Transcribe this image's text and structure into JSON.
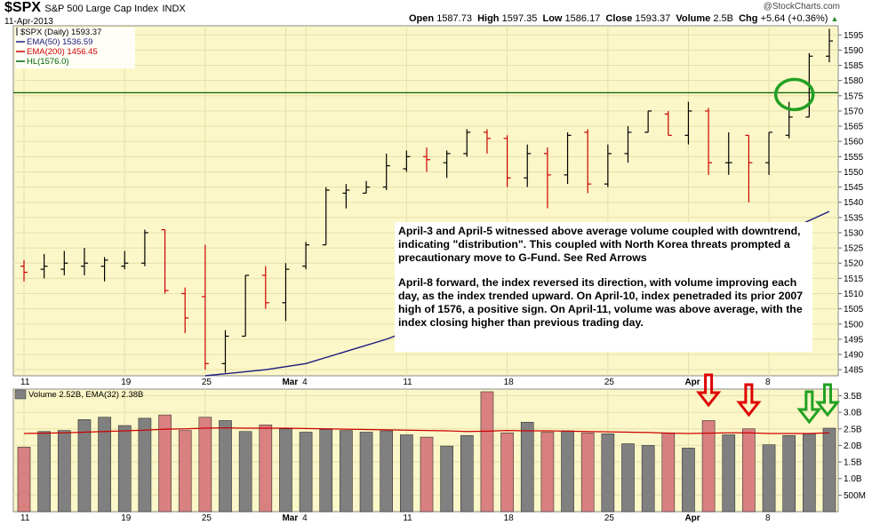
{
  "header": {
    "symbol": "$SPX",
    "name": "S&P 500 Large Cap Index",
    "exchange": "INDX",
    "date": "11-Apr-2013",
    "credit": "@StockCharts.com",
    "open_label": "Open",
    "open": "1587.73",
    "high_label": "High",
    "high": "1597.35",
    "low_label": "Low",
    "low": "1586.17",
    "close_label": "Close",
    "close": "1593.37",
    "volume_label": "Volume",
    "volume": "2.5B",
    "chg_label": "Chg",
    "chg": "+5.64 (+0.36%)",
    "chg_arrow": "▲"
  },
  "legend": {
    "series_main": "$SPX (Daily) 1593.37",
    "ema50": "EMA(50) 1536.59",
    "ema200": "EMA(200) 1456.45",
    "hl": "HL(1576.0)",
    "volume": "Volume 2.52B, EMA(32) 2.38B"
  },
  "annotation": {
    "p1": "April-3 and April-5 witnessed above average volume coupled with downtrend, indicating \"distribution\".   This coupled with North Korea threats prompted a precautionary move to G-Fund.  See Red Arrows",
    "p2": "April-8 forward, the index reversed its direction, with volume improving each day, as the index trended upward.  On April-10, index penetraded its prior 2007 high of 1576, a positive sign.  On April-11, volume was above average, with the index closing higher than previous trading day."
  },
  "colors": {
    "up": "#000000",
    "down": "#cc0000",
    "price_bg": "#fbf7c8",
    "vol_bg": "#fbf7c8",
    "ema50": "#1a1a80",
    "hl": "#006400",
    "vol_up": "#808080",
    "vol_down": "#d98080",
    "vol_ema": "#cc0000",
    "circle": "#22a022",
    "red_arrow": "#dd0000",
    "green_arrow": "#22a022"
  },
  "chart_data": {
    "type": "ohlc",
    "price_axis": {
      "min": 1483,
      "max": 1598,
      "ticks": [
        1485,
        1490,
        1495,
        1500,
        1505,
        1510,
        1515,
        1520,
        1525,
        1530,
        1535,
        1540,
        1545,
        1550,
        1555,
        1560,
        1565,
        1570,
        1575,
        1580,
        1585,
        1590,
        1595
      ]
    },
    "volume_axis": {
      "min": 0,
      "max": 3.7,
      "ticks": [
        0.5,
        1.0,
        1.5,
        2.0,
        2.5,
        3.0,
        3.5
      ],
      "tick_labels": [
        "500M",
        "1.0B",
        "1.5B",
        "2.0B",
        "2.5B",
        "3.0B",
        "3.5B"
      ]
    },
    "x_labels": [
      {
        "label": "11",
        "index": 0
      },
      {
        "label": "19",
        "index": 5
      },
      {
        "label": "25",
        "index": 9
      },
      {
        "label": "Mar",
        "index": 13,
        "bold": true
      },
      {
        "label": "4",
        "index": 14
      },
      {
        "label": "11",
        "index": 19
      },
      {
        "label": "18",
        "index": 24
      },
      {
        "label": "25",
        "index": 29
      },
      {
        "label": "Apr",
        "index": 33,
        "bold": true
      },
      {
        "label": "8",
        "index": 37
      }
    ],
    "candles": [
      {
        "o": 1519,
        "h": 1521,
        "l": 1514,
        "c": 1517,
        "v": 1.95
      },
      {
        "o": 1518,
        "h": 1523,
        "l": 1515,
        "c": 1519,
        "v": 2.42
      },
      {
        "o": 1518,
        "h": 1524,
        "l": 1516,
        "c": 1520,
        "v": 2.45
      },
      {
        "o": 1519,
        "h": 1525,
        "l": 1516,
        "c": 1520,
        "v": 2.78
      },
      {
        "o": 1519,
        "h": 1522,
        "l": 1514,
        "c": 1521,
        "v": 2.85
      },
      {
        "o": 1519,
        "h": 1524,
        "l": 1518,
        "c": 1520,
        "v": 2.6
      },
      {
        "o": 1520,
        "h": 1531,
        "l": 1519,
        "c": 1530,
        "v": 2.82
      },
      {
        "o": 1531,
        "h": 1531,
        "l": 1510,
        "c": 1511,
        "v": 2.92
      },
      {
        "o": 1510,
        "h": 1512,
        "l": 1497,
        "c": 1502,
        "v": 2.45
      },
      {
        "o": 1509,
        "h": 1526,
        "l": 1485,
        "c": 1487,
        "v": 2.85
      },
      {
        "o": 1487,
        "h": 1498,
        "l": 1484,
        "c": 1496,
        "v": 2.75
      },
      {
        "o": 1496,
        "h": 1516,
        "l": 1496,
        "c": 1516,
        "v": 2.42
      },
      {
        "o": 1516,
        "h": 1519,
        "l": 1505,
        "c": 1507,
        "v": 2.62
      },
      {
        "o": 1507,
        "h": 1520,
        "l": 1501,
        "c": 1518,
        "v": 2.5
      },
      {
        "o": 1519,
        "h": 1527,
        "l": 1518,
        "c": 1526,
        "v": 2.4
      },
      {
        "o": 1526,
        "h": 1545,
        "l": 1526,
        "c": 1544,
        "v": 2.48
      },
      {
        "o": 1543,
        "h": 1546,
        "l": 1538,
        "c": 1544,
        "v": 2.45
      },
      {
        "o": 1543,
        "h": 1547,
        "l": 1543,
        "c": 1545,
        "v": 2.4
      },
      {
        "o": 1545,
        "h": 1556,
        "l": 1544,
        "c": 1552,
        "v": 2.44
      },
      {
        "o": 1551,
        "h": 1557,
        "l": 1550,
        "c": 1555,
        "v": 2.32
      },
      {
        "o": 1555,
        "h": 1558,
        "l": 1550,
        "c": 1554,
        "v": 2.25
      },
      {
        "o": 1553,
        "h": 1557,
        "l": 1548,
        "c": 1556,
        "v": 1.98
      },
      {
        "o": 1556,
        "h": 1564,
        "l": 1555,
        "c": 1563,
        "v": 2.3
      },
      {
        "o": 1563,
        "h": 1564,
        "l": 1556,
        "c": 1561,
        "v": 3.62
      },
      {
        "o": 1561,
        "h": 1562,
        "l": 1545,
        "c": 1548,
        "v": 2.38
      },
      {
        "o": 1548,
        "h": 1559,
        "l": 1545,
        "c": 1556,
        "v": 2.7
      },
      {
        "o": 1556,
        "h": 1558,
        "l": 1538,
        "c": 1549,
        "v": 2.4
      },
      {
        "o": 1549,
        "h": 1563,
        "l": 1546,
        "c": 1562,
        "v": 2.44
      },
      {
        "o": 1563,
        "h": 1564,
        "l": 1543,
        "c": 1546,
        "v": 2.38
      },
      {
        "o": 1546,
        "h": 1559,
        "l": 1545,
        "c": 1556,
        "v": 2.35
      },
      {
        "o": 1556,
        "h": 1565,
        "l": 1553,
        "c": 1563,
        "v": 2.05
      },
      {
        "o": 1563,
        "h": 1570,
        "l": 1563,
        "c": 1570,
        "v": 2.0
      },
      {
        "o": 1569,
        "h": 1570,
        "l": 1562,
        "c": 1562,
        "v": 2.38
      },
      {
        "o": 1562,
        "h": 1573,
        "l": 1559,
        "c": 1570,
        "v": 1.92
      },
      {
        "o": 1570,
        "h": 1571,
        "l": 1549,
        "c": 1553,
        "v": 2.75
      },
      {
        "o": 1553,
        "h": 1563,
        "l": 1549,
        "c": 1553,
        "v": 2.32
      },
      {
        "o": 1562,
        "h": 1562,
        "l": 1540,
        "c": 1553,
        "v": 2.5
      },
      {
        "o": 1553,
        "h": 1563,
        "l": 1549,
        "c": 1563,
        "v": 2.02
      },
      {
        "o": 1562,
        "h": 1573,
        "l": 1561,
        "c": 1568,
        "v": 2.3
      },
      {
        "o": 1568,
        "h": 1589,
        "l": 1568,
        "c": 1588,
        "v": 2.35
      },
      {
        "o": 1588,
        "h": 1597,
        "l": 1586,
        "c": 1593,
        "v": 2.52
      }
    ],
    "ema50_points": [
      {
        "i": 9,
        "v": 1483
      },
      {
        "i": 12,
        "v": 1485
      },
      {
        "i": 14,
        "v": 1487
      },
      {
        "i": 16,
        "v": 1491
      },
      {
        "i": 18,
        "v": 1495
      },
      {
        "i": 20,
        "v": 1500
      },
      {
        "i": 22,
        "v": 1504
      },
      {
        "i": 24,
        "v": 1508
      },
      {
        "i": 26,
        "v": 1512
      },
      {
        "i": 28,
        "v": 1516
      },
      {
        "i": 30,
        "v": 1519
      },
      {
        "i": 32,
        "v": 1522
      },
      {
        "i": 34,
        "v": 1525
      },
      {
        "i": 36,
        "v": 1528
      },
      {
        "i": 38,
        "v": 1531
      },
      {
        "i": 40,
        "v": 1537
      }
    ],
    "hl_value": 1576,
    "vol_ema": [
      2.36,
      2.37,
      2.38,
      2.4,
      2.42,
      2.44,
      2.46,
      2.49,
      2.5,
      2.52,
      2.53,
      2.52,
      2.52,
      2.52,
      2.51,
      2.5,
      2.49,
      2.48,
      2.47,
      2.46,
      2.45,
      2.44,
      2.42,
      2.43,
      2.45,
      2.44,
      2.44,
      2.43,
      2.42,
      2.41,
      2.4,
      2.39,
      2.37,
      2.36,
      2.37,
      2.38,
      2.38,
      2.36,
      2.36,
      2.36,
      2.38
    ]
  }
}
